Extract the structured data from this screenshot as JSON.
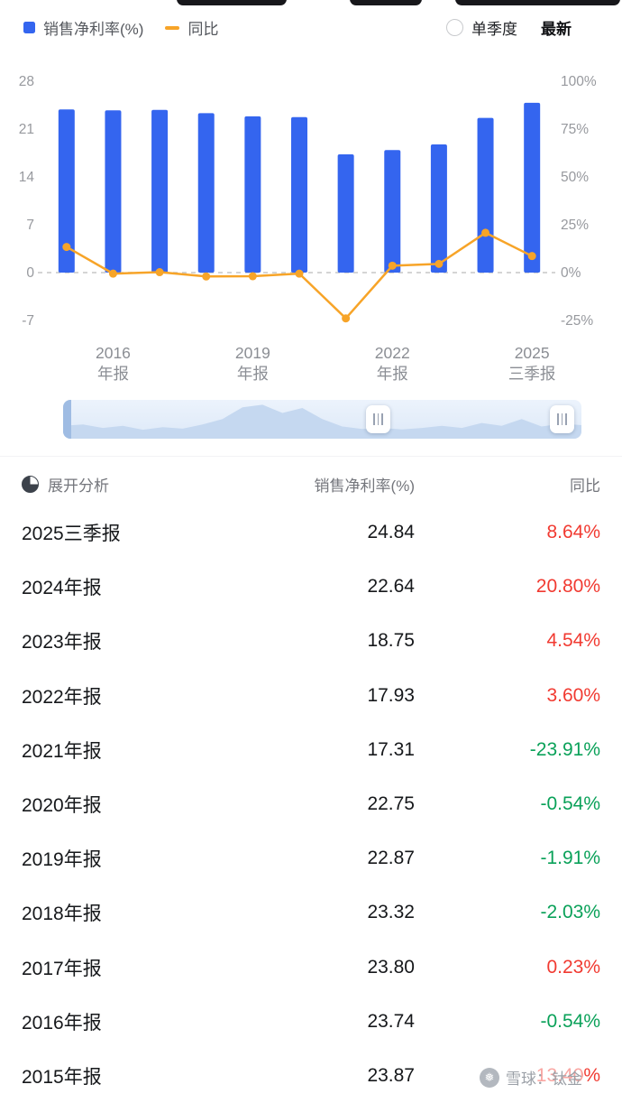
{
  "legend": {
    "bar_label": "销售净利率(%)",
    "line_label": "同比",
    "bar_color": "#3465EF",
    "line_color": "#F7A428",
    "radio_label": "单季度",
    "latest_label": "最新"
  },
  "chart_data": {
    "type": "bar+line combo",
    "categories": [
      "2015年报",
      "2016年报",
      "2017年报",
      "2018年报",
      "2019年报",
      "2020年报",
      "2021年报",
      "2022年报",
      "2023年报",
      "2024年报",
      "2025三季报"
    ],
    "series": [
      {
        "name": "销售净利率(%)",
        "type": "bar",
        "axis": "left",
        "color": "#3465EF",
        "values": [
          23.87,
          23.74,
          23.8,
          23.32,
          22.87,
          22.75,
          17.31,
          17.93,
          18.75,
          22.64,
          24.84
        ]
      },
      {
        "name": "同比",
        "type": "line",
        "axis": "right",
        "color": "#F7A428",
        "values": [
          13.4,
          -0.54,
          0.23,
          -2.03,
          -1.91,
          -0.54,
          -23.91,
          3.6,
          4.54,
          20.8,
          8.64
        ]
      }
    ],
    "left_axis": {
      "max": 28,
      "min": -7,
      "ticks": [
        28,
        21,
        14,
        7,
        0,
        -7
      ]
    },
    "right_axis": {
      "max": 100,
      "min": -25,
      "ticks": [
        "100%",
        "75%",
        "50%",
        "25%",
        "0%",
        "-25%"
      ]
    },
    "x_tick_labels": [
      {
        "index": 1,
        "lines": [
          "2016",
          "年报"
        ]
      },
      {
        "index": 4,
        "lines": [
          "2019",
          "年报"
        ]
      },
      {
        "index": 7,
        "lines": [
          "2022",
          "年报"
        ]
      },
      {
        "index": 10,
        "lines": [
          "2025",
          "三季报"
        ]
      }
    ],
    "zero_line": "dashed",
    "grid": "off",
    "legend_position": "top-left"
  },
  "brush": {
    "profile": [
      0.36,
      0.4,
      0.3,
      0.36,
      0.25,
      0.32,
      0.28,
      0.4,
      0.55,
      0.88,
      0.95,
      0.72,
      0.86,
      0.55,
      0.34,
      0.27,
      0.3,
      0.26,
      0.3,
      0.36,
      0.3,
      0.44,
      0.36,
      0.55,
      0.34,
      0.42,
      0.38
    ]
  },
  "table": {
    "header": {
      "expand_label": "展开分析",
      "value_label": "销售净利率(%)",
      "yoy_label": "同比"
    },
    "up_color": "#F13A31",
    "down_color": "#0AA159",
    "rows": [
      {
        "period": "2025三季报",
        "value": "24.84",
        "yoy": "8.64%",
        "trend": "up"
      },
      {
        "period": "2024年报",
        "value": "22.64",
        "yoy": "20.80%",
        "trend": "up"
      },
      {
        "period": "2023年报",
        "value": "18.75",
        "yoy": "4.54%",
        "trend": "up"
      },
      {
        "period": "2022年报",
        "value": "17.93",
        "yoy": "3.60%",
        "trend": "up"
      },
      {
        "period": "2021年报",
        "value": "17.31",
        "yoy": "-23.91%",
        "trend": "down"
      },
      {
        "period": "2020年报",
        "value": "22.75",
        "yoy": "-0.54%",
        "trend": "down"
      },
      {
        "period": "2019年报",
        "value": "22.87",
        "yoy": "-1.91%",
        "trend": "down"
      },
      {
        "period": "2018年报",
        "value": "23.32",
        "yoy": "-2.03%",
        "trend": "down"
      },
      {
        "period": "2017年报",
        "value": "23.80",
        "yoy": "0.23%",
        "trend": "up"
      },
      {
        "period": "2016年报",
        "value": "23.74",
        "yoy": "-0.54%",
        "trend": "down"
      },
      {
        "period": "2015年报",
        "value": "23.87",
        "yoy": "13.40%",
        "trend": "up"
      }
    ]
  },
  "watermark": {
    "text": "雪球：钛金",
    "logo_glyph": "❅"
  }
}
